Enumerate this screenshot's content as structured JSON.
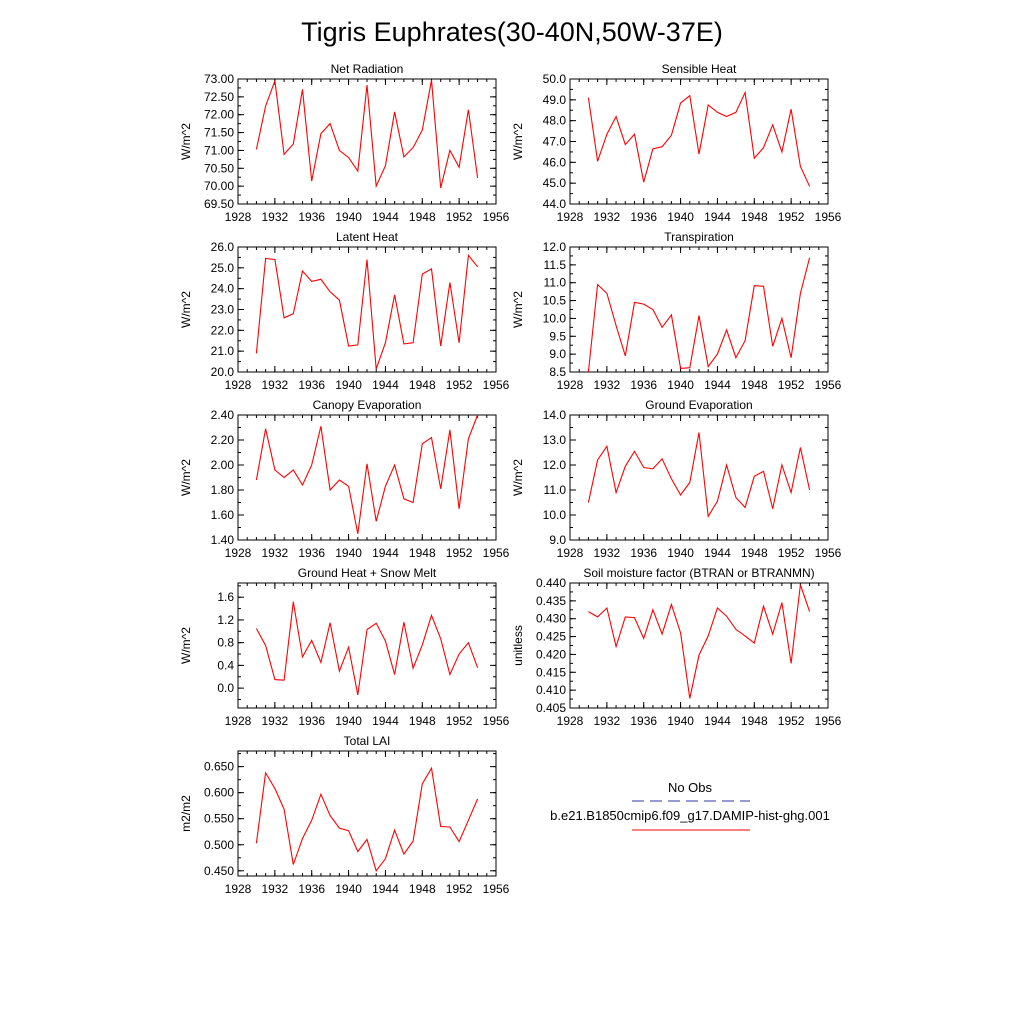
{
  "title": "Tigris Euphrates(30-40N,50W-37E)",
  "colors": {
    "series": "#ff0000",
    "obs": "#3333aa",
    "axis": "#000000"
  },
  "chart_data": [
    {
      "type": "line",
      "title": "Net Radiation",
      "ylabel": "W/m^2",
      "xlim": [
        1928,
        1956
      ],
      "ylim": [
        69.5,
        73.0
      ],
      "yticks": [
        "69.50",
        "70.00",
        "70.50",
        "71.00",
        "71.50",
        "72.00",
        "72.50",
        "73.00"
      ],
      "xticks": [
        "1928",
        "1932",
        "1936",
        "1940",
        "1944",
        "1948",
        "1952",
        "1956"
      ],
      "x": [
        1930,
        1931,
        1932,
        1933,
        1934,
        1935,
        1936,
        1937,
        1938,
        1939,
        1940,
        1941,
        1942,
        1943,
        1944,
        1945,
        1946,
        1947,
        1948,
        1949,
        1950,
        1951,
        1952,
        1953,
        1954
      ],
      "values": [
        71.03,
        72.24,
        72.95,
        70.89,
        71.18,
        72.71,
        70.14,
        71.47,
        71.75,
        71.0,
        70.8,
        70.42,
        72.83,
        70.0,
        70.57,
        72.08,
        70.82,
        71.08,
        71.57,
        72.97,
        69.95,
        71.0,
        70.53,
        72.14,
        70.23
      ]
    },
    {
      "type": "line",
      "title": "Sensible Heat",
      "ylabel": "W/m^2",
      "xlim": [
        1928,
        1956
      ],
      "ylim": [
        44.0,
        50.0
      ],
      "yticks": [
        "44.0",
        "45.0",
        "46.0",
        "47.0",
        "48.0",
        "49.0",
        "50.0"
      ],
      "xticks": [
        "1928",
        "1932",
        "1936",
        "1940",
        "1944",
        "1948",
        "1952",
        "1956"
      ],
      "x": [
        1930,
        1931,
        1932,
        1933,
        1934,
        1935,
        1936,
        1937,
        1938,
        1939,
        1940,
        1941,
        1942,
        1943,
        1944,
        1945,
        1946,
        1947,
        1948,
        1949,
        1950,
        1951,
        1952,
        1953,
        1954
      ],
      "values": [
        49.1,
        46.05,
        47.35,
        48.2,
        46.85,
        47.35,
        45.05,
        46.65,
        46.75,
        47.3,
        48.85,
        49.2,
        46.4,
        48.75,
        48.4,
        48.2,
        48.4,
        49.35,
        46.2,
        46.7,
        47.8,
        46.5,
        48.55,
        45.8,
        44.85
      ]
    },
    {
      "type": "line",
      "title": "Latent Heat",
      "ylabel": "W/m^2",
      "xlim": [
        1928,
        1956
      ],
      "ylim": [
        20.0,
        26.0
      ],
      "yticks": [
        "20.0",
        "21.0",
        "22.0",
        "23.0",
        "24.0",
        "25.0",
        "26.0"
      ],
      "xticks": [
        "1928",
        "1932",
        "1936",
        "1940",
        "1944",
        "1948",
        "1952",
        "1956"
      ],
      "x": [
        1930,
        1931,
        1932,
        1933,
        1934,
        1935,
        1936,
        1937,
        1938,
        1939,
        1940,
        1941,
        1942,
        1943,
        1944,
        1945,
        1946,
        1947,
        1948,
        1949,
        1950,
        1951,
        1952,
        1953,
        1954
      ],
      "values": [
        20.9,
        25.45,
        25.4,
        22.6,
        22.8,
        24.85,
        24.35,
        24.45,
        23.85,
        23.45,
        21.25,
        21.3,
        25.4,
        20.15,
        21.4,
        23.7,
        21.35,
        21.4,
        24.7,
        24.95,
        21.25,
        24.3,
        21.4,
        25.6,
        25.05
      ]
    },
    {
      "type": "line",
      "title": "Transpiration",
      "ylabel": "W/m^2",
      "xlim": [
        1928,
        1956
      ],
      "ylim": [
        8.5,
        12.0
      ],
      "yticks": [
        "8.5",
        "9.0",
        "9.5",
        "10.0",
        "10.5",
        "11.0",
        "11.5",
        "12.0"
      ],
      "xticks": [
        "1928",
        "1932",
        "1936",
        "1940",
        "1944",
        "1948",
        "1952",
        "1956"
      ],
      "x": [
        1930,
        1931,
        1932,
        1933,
        1934,
        1935,
        1936,
        1937,
        1938,
        1939,
        1940,
        1941,
        1942,
        1943,
        1944,
        1945,
        1946,
        1947,
        1948,
        1949,
        1950,
        1951,
        1952,
        1953,
        1954
      ],
      "values": [
        8.5,
        10.95,
        10.7,
        9.8,
        8.95,
        10.45,
        10.4,
        10.25,
        9.75,
        10.1,
        8.6,
        8.62,
        10.08,
        8.65,
        9.0,
        9.68,
        8.9,
        9.38,
        10.92,
        10.9,
        9.22,
        10.0,
        8.9,
        10.7,
        11.7
      ]
    },
    {
      "type": "line",
      "title": "Canopy Evaporation",
      "ylabel": "W/m^2",
      "xlim": [
        1928,
        1956
      ],
      "ylim": [
        1.4,
        2.4
      ],
      "yticks": [
        "1.40",
        "1.60",
        "1.80",
        "2.00",
        "2.20",
        "2.40"
      ],
      "xticks": [
        "1928",
        "1932",
        "1936",
        "1940",
        "1944",
        "1948",
        "1952",
        "1956"
      ],
      "x": [
        1930,
        1931,
        1932,
        1933,
        1934,
        1935,
        1936,
        1937,
        1938,
        1939,
        1940,
        1941,
        1942,
        1943,
        1944,
        1945,
        1946,
        1947,
        1948,
        1949,
        1950,
        1951,
        1952,
        1953,
        1954
      ],
      "values": [
        1.88,
        2.29,
        1.96,
        1.9,
        1.96,
        1.84,
        2.0,
        2.31,
        1.8,
        1.88,
        1.83,
        1.45,
        2.01,
        1.55,
        1.83,
        2.0,
        1.73,
        1.7,
        2.17,
        2.22,
        1.81,
        2.28,
        1.65,
        2.21,
        2.4
      ]
    },
    {
      "type": "line",
      "title": "Ground Evaporation",
      "ylabel": "W/m^2",
      "xlim": [
        1928,
        1956
      ],
      "ylim": [
        9.0,
        14.0
      ],
      "yticks": [
        "9.0",
        "10.0",
        "11.0",
        "12.0",
        "13.0",
        "14.0"
      ],
      "xticks": [
        "1928",
        "1932",
        "1936",
        "1940",
        "1944",
        "1948",
        "1952",
        "1956"
      ],
      "x": [
        1930,
        1931,
        1932,
        1933,
        1934,
        1935,
        1936,
        1937,
        1938,
        1939,
        1940,
        1941,
        1942,
        1943,
        1944,
        1945,
        1946,
        1947,
        1948,
        1949,
        1950,
        1951,
        1952,
        1953,
        1954
      ],
      "values": [
        10.5,
        12.2,
        12.75,
        10.9,
        11.95,
        12.55,
        11.9,
        11.85,
        12.25,
        11.45,
        10.8,
        11.3,
        13.3,
        9.95,
        10.55,
        12.0,
        10.7,
        10.3,
        11.55,
        11.75,
        10.25,
        12.0,
        10.9,
        12.7,
        11.0
      ]
    },
    {
      "type": "line",
      "title": "Ground Heat + Snow Melt",
      "ylabel": "W/m^2",
      "xlim": [
        1928,
        1956
      ],
      "ylim": [
        -0.35,
        1.85
      ],
      "yticks": [
        "0.0",
        "0.4",
        "0.8",
        "1.2",
        "1.6"
      ],
      "ytick_values": [
        0.0,
        0.4,
        0.8,
        1.2,
        1.6
      ],
      "xticks": [
        "1928",
        "1932",
        "1936",
        "1940",
        "1944",
        "1948",
        "1952",
        "1956"
      ],
      "x": [
        1930,
        1931,
        1932,
        1933,
        1934,
        1935,
        1936,
        1937,
        1938,
        1939,
        1940,
        1941,
        1942,
        1943,
        1944,
        1945,
        1946,
        1947,
        1948,
        1949,
        1950,
        1951,
        1952,
        1953,
        1954
      ],
      "values": [
        1.05,
        0.75,
        0.15,
        0.14,
        1.52,
        0.55,
        0.84,
        0.45,
        1.15,
        0.3,
        0.72,
        -0.12,
        1.03,
        1.14,
        0.83,
        0.24,
        1.16,
        0.35,
        0.76,
        1.28,
        0.87,
        0.24,
        0.6,
        0.8,
        0.36
      ]
    },
    {
      "type": "line",
      "title": "Soil moisture factor (BTRAN or BTRANMN)",
      "ylabel": "unitless",
      "xlim": [
        1928,
        1956
      ],
      "ylim": [
        0.405,
        0.44
      ],
      "yticks": [
        "0.405",
        "0.410",
        "0.415",
        "0.420",
        "0.425",
        "0.430",
        "0.435",
        "0.440"
      ],
      "xticks": [
        "1928",
        "1932",
        "1936",
        "1940",
        "1944",
        "1948",
        "1952",
        "1956"
      ],
      "x": [
        1930,
        1931,
        1932,
        1933,
        1934,
        1935,
        1936,
        1937,
        1938,
        1939,
        1940,
        1941,
        1942,
        1943,
        1944,
        1945,
        1946,
        1947,
        1948,
        1949,
        1950,
        1951,
        1952,
        1953,
        1954
      ],
      "values": [
        0.432,
        0.4305,
        0.433,
        0.4222,
        0.4305,
        0.4303,
        0.4245,
        0.4325,
        0.4257,
        0.434,
        0.426,
        0.4077,
        0.4198,
        0.4252,
        0.433,
        0.4307,
        0.427,
        0.4252,
        0.4232,
        0.4335,
        0.4257,
        0.4345,
        0.4175,
        0.4395,
        0.432
      ]
    },
    {
      "type": "line",
      "title": "Total LAI",
      "ylabel": "m2/m2",
      "xlim": [
        1928,
        1956
      ],
      "ylim": [
        0.44,
        0.68
      ],
      "yticks": [
        "0.450",
        "0.500",
        "0.550",
        "0.600",
        "0.650"
      ],
      "ytick_values": [
        0.45,
        0.5,
        0.55,
        0.6,
        0.65
      ],
      "xticks": [
        "1928",
        "1932",
        "1936",
        "1940",
        "1944",
        "1948",
        "1952",
        "1956"
      ],
      "x": [
        1930,
        1931,
        1932,
        1933,
        1934,
        1935,
        1936,
        1937,
        1938,
        1939,
        1940,
        1941,
        1942,
        1943,
        1944,
        1945,
        1946,
        1947,
        1948,
        1949,
        1950,
        1951,
        1952,
        1953,
        1954
      ],
      "values": [
        0.503,
        0.638,
        0.608,
        0.568,
        0.462,
        0.512,
        0.547,
        0.597,
        0.556,
        0.532,
        0.527,
        0.487,
        0.51,
        0.45,
        0.473,
        0.528,
        0.482,
        0.507,
        0.617,
        0.647,
        0.535,
        0.534,
        0.506,
        0.547,
        0.588
      ]
    }
  ],
  "legend": {
    "obs_label": "No Obs",
    "model_label": "b.e21.B1850cmip6.f09_g17.DAMIP-hist-ghg.001"
  }
}
